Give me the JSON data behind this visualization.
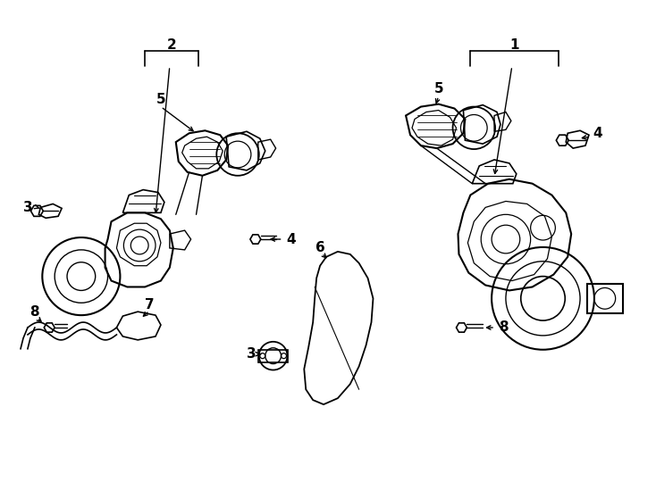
{
  "background_color": "#ffffff",
  "line_color": "#000000",
  "figure_width": 7.34,
  "figure_height": 5.4,
  "dpi": 100
}
